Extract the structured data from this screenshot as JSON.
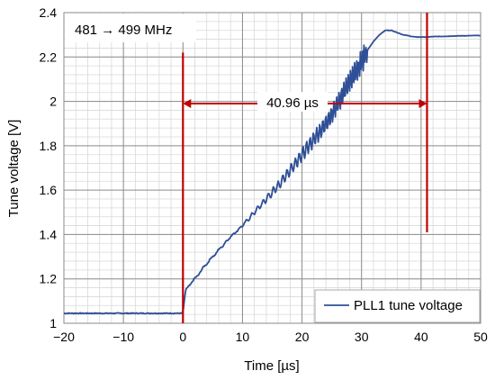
{
  "chart_data": {
    "type": "line",
    "title": "",
    "xlabel": "Time [µs]",
    "ylabel": "Tune voltage [V]",
    "xlim": [
      -20,
      50
    ],
    "ylim": [
      1,
      2.4
    ],
    "x_ticks": [
      -20,
      -10,
      0,
      10,
      20,
      30,
      40,
      50
    ],
    "x_tick_labels": [
      "−20",
      "−10",
      "0",
      "10",
      "20",
      "30",
      "40",
      "50"
    ],
    "y_ticks": [
      1,
      1.2,
      1.4,
      1.6,
      1.8,
      2,
      2.2,
      2.4
    ],
    "y_tick_labels": [
      "1",
      "1.2",
      "1.4",
      "1.6",
      "1.8",
      "2",
      "2.2",
      "2.4"
    ],
    "grid": true,
    "legend": {
      "position": "bottom-right",
      "entries": [
        "PLL1 tune voltage"
      ]
    },
    "series": [
      {
        "name": "PLL1 tune voltage",
        "color": "#2f4f96",
        "x": [
          -20,
          -10,
          -2,
          -0.2,
          0,
          0.5,
          1,
          2,
          4,
          6,
          8,
          10,
          12,
          14,
          16,
          18,
          20,
          22,
          24,
          25,
          26,
          27,
          28,
          29,
          30,
          31,
          32,
          33,
          34,
          35,
          36,
          37,
          38,
          39,
          40,
          41,
          42,
          44,
          46,
          48,
          50
        ],
        "y": [
          1.045,
          1.045,
          1.045,
          1.045,
          1.05,
          1.15,
          1.17,
          1.2,
          1.27,
          1.33,
          1.39,
          1.44,
          1.5,
          1.56,
          1.62,
          1.69,
          1.76,
          1.83,
          1.9,
          1.94,
          1.99,
          2.04,
          2.09,
          2.13,
          2.18,
          2.23,
          2.27,
          2.3,
          2.32,
          2.32,
          2.31,
          2.3,
          2.295,
          2.29,
          2.29,
          2.29,
          2.292,
          2.293,
          2.295,
          2.296,
          2.297
        ]
      }
    ],
    "annotations": {
      "frequency_box": "481 → 499 MHz",
      "markers": [
        0,
        41
      ],
      "marker_color": "#c00000",
      "interval_arrow": {
        "x1": 0,
        "x2": 41,
        "y": 1.99,
        "label": "40.96 µs"
      }
    }
  }
}
